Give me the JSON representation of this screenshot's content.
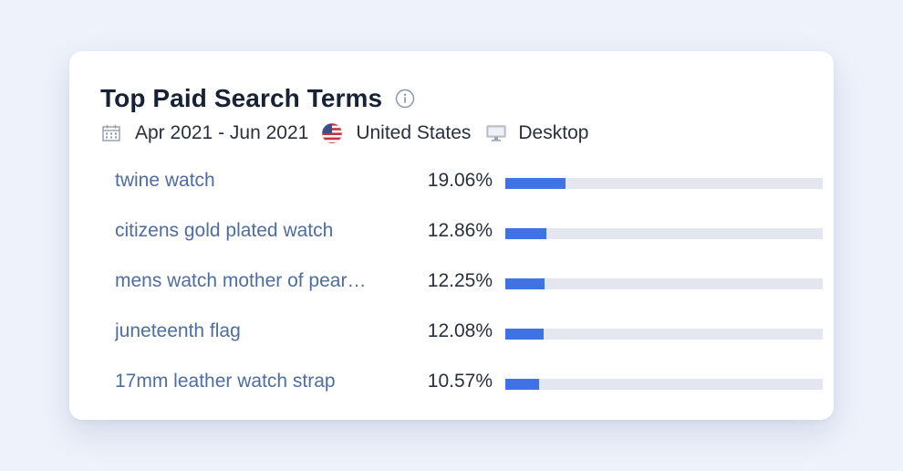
{
  "header": {
    "title": "Top Paid Search Terms",
    "info_icon": "info-circle-icon"
  },
  "meta": {
    "date_range": "Apr 2021 - Jun 2021",
    "country": "United States",
    "device": "Desktop",
    "calendar_icon": "calendar-icon",
    "flag_icon": "us-flag-icon",
    "device_icon": "desktop-monitor-icon"
  },
  "colors": {
    "bar_fill": "#3f72e4",
    "bar_track": "#e4e7f0",
    "term_link": "#4d6da6",
    "title": "#172236"
  },
  "terms": [
    {
      "term": "twine watch",
      "share_label": "19.06%",
      "share": 19.06
    },
    {
      "term": "citizens gold plated watch",
      "share_label": "12.86%",
      "share": 12.86
    },
    {
      "term": "mens watch mother of pear…",
      "share_label": "12.25%",
      "share": 12.25
    },
    {
      "term": "juneteenth flag",
      "share_label": "12.08%",
      "share": 12.08
    },
    {
      "term": "17mm leather watch strap",
      "share_label": "10.57%",
      "share": 10.57
    }
  ]
}
